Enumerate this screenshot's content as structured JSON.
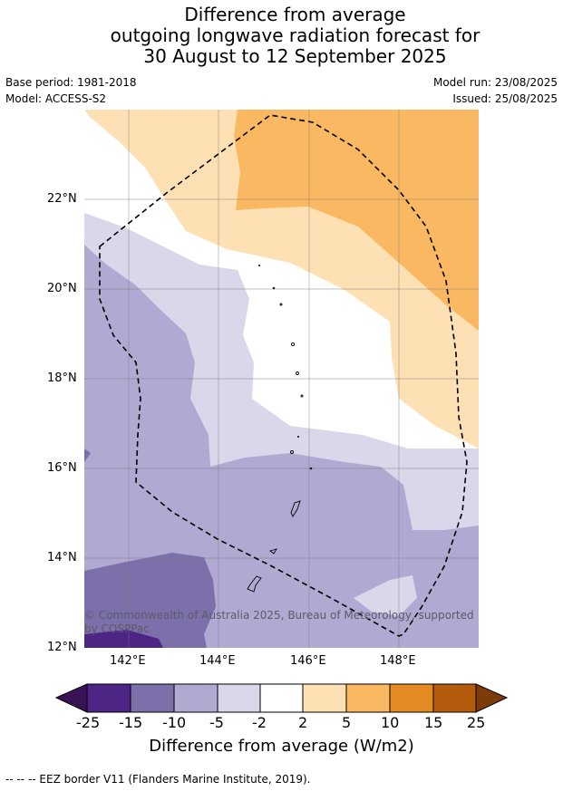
{
  "header": {
    "title_lines": [
      "Difference from average",
      "outgoing longwave radiation forecast for",
      "30 August to 12 September 2025"
    ],
    "base_period": "Base period: 1981-2018",
    "model": "Model: ACCESS-S2",
    "model_run": "Model run: 23/08/2025",
    "issued": "Issued: 25/08/2025"
  },
  "map": {
    "lat_ticks": [
      "22°N",
      "20°N",
      "18°N",
      "16°N",
      "14°N",
      "12°N"
    ],
    "lon_ticks": [
      "142°E",
      "144°E",
      "146°E",
      "148°E"
    ],
    "credit": "© Commonwealth of Australia 2025, Bureau of Meteorology, supported by COSPPac",
    "colors": {
      "purple_-25": "#4d2585",
      "purple_-15": "#7d70aa",
      "purple_-10": "#b0aad2",
      "purple_-5": "#d8d8ea",
      "white": "#ffffff",
      "orange_2": "#fde0b4",
      "orange_5": "#fbb862",
      "orange_10": "#e48a22",
      "orange_15": "#b45b0d",
      "orange_25": "#7e3b0a"
    }
  },
  "colorbar": {
    "labels": [
      "-25",
      "-15",
      "-10",
      "-5",
      "-2",
      "2",
      "5",
      "10",
      "15",
      "25"
    ],
    "title": "Difference from average (W/m2)"
  },
  "footnote": "--  --  -- EEZ border V11 (Flanders Marine Institute, 2019)."
}
